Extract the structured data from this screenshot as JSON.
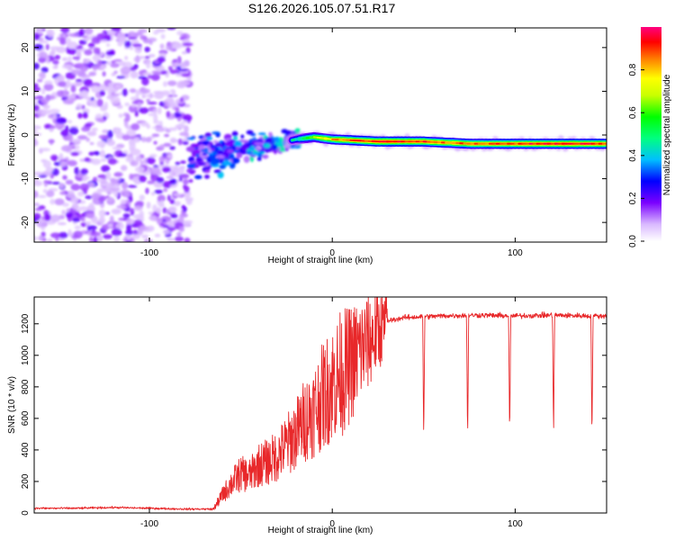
{
  "title": "S126.2026.105.07.51.R17",
  "chart_data": [
    {
      "type": "heatmap",
      "xlabel": "Height of straight line (km)",
      "ylabel": "Frequency (Hz)",
      "xlim": [
        -163,
        150
      ],
      "ylim": [
        -24.5,
        24.5
      ],
      "xticks": [
        -100,
        0,
        100
      ],
      "xtick_labels": [
        "-100",
        "0",
        "100"
      ],
      "yticks": [
        -20,
        -10,
        0,
        10,
        20
      ],
      "ytick_labels": [
        "-20",
        "-10",
        "0",
        "10",
        "20"
      ],
      "colorbar": {
        "label": "Normalized spectral amplitude",
        "range": [
          0,
          1
        ],
        "ticks": [
          0,
          0.2,
          0.4,
          0.6,
          0.8
        ],
        "tick_labels": [
          "0.0",
          "0.2",
          "0.4",
          "0.6",
          "0.8"
        ]
      },
      "noise_region_x": [
        -163,
        -78
      ],
      "ridge_points": [
        {
          "x": -75,
          "f": -5,
          "amp": 0.25
        },
        {
          "x": -60,
          "f": -4,
          "amp": 0.3
        },
        {
          "x": -45,
          "f": -3,
          "amp": 0.35
        },
        {
          "x": -30,
          "f": -2,
          "amp": 0.4
        },
        {
          "x": -20,
          "f": -1,
          "amp": 0.45
        },
        {
          "x": -10,
          "f": -0.5,
          "amp": 0.7
        },
        {
          "x": 0,
          "f": -1,
          "amp": 0.8
        },
        {
          "x": 25,
          "f": -1.5,
          "amp": 0.95
        },
        {
          "x": 50,
          "f": -1.5,
          "amp": 0.9
        },
        {
          "x": 75,
          "f": -2,
          "amp": 0.85
        },
        {
          "x": 100,
          "f": -2,
          "amp": 0.9
        },
        {
          "x": 125,
          "f": -2,
          "amp": 0.95
        },
        {
          "x": 150,
          "f": -2,
          "amp": 0.9
        }
      ]
    },
    {
      "type": "line",
      "xlabel": "Height of straight line (km)",
      "ylabel": "SNR (10 * v/v)",
      "xlim": [
        -163,
        150
      ],
      "ylim": [
        0,
        1370
      ],
      "xticks": [
        -100,
        0,
        100
      ],
      "xtick_labels": [
        "-100",
        "0",
        "100"
      ],
      "yticks": [
        0,
        200,
        400,
        600,
        800,
        1000,
        1200
      ],
      "ytick_labels": [
        "0",
        "200",
        "400",
        "600",
        "800",
        "1000",
        "1200"
      ],
      "color": "#e8282a",
      "series": [
        {
          "name": "SNR",
          "x": [
            -163,
            -140,
            -120,
            -100,
            -80,
            -65,
            -60,
            -55,
            -50,
            -45,
            -40,
            -35,
            -30,
            -25,
            -20,
            -15,
            -10,
            -5,
            0,
            5,
            10,
            15,
            20,
            25,
            30,
            40,
            60,
            80,
            100,
            120,
            140,
            150
          ],
          "y": [
            30,
            30,
            35,
            30,
            25,
            25,
            120,
            200,
            260,
            250,
            320,
            340,
            380,
            450,
            520,
            620,
            680,
            780,
            860,
            930,
            980,
            1060,
            1120,
            1180,
            1220,
            1240,
            1250,
            1255,
            1250,
            1255,
            1250,
            1250
          ],
          "dips": [
            {
              "x": 50,
              "y": 450
            },
            {
              "x": 74,
              "y": 460
            },
            {
              "x": 97,
              "y": 480
            },
            {
              "x": 121,
              "y": 490
            },
            {
              "x": 142,
              "y": 460
            }
          ]
        }
      ]
    }
  ]
}
